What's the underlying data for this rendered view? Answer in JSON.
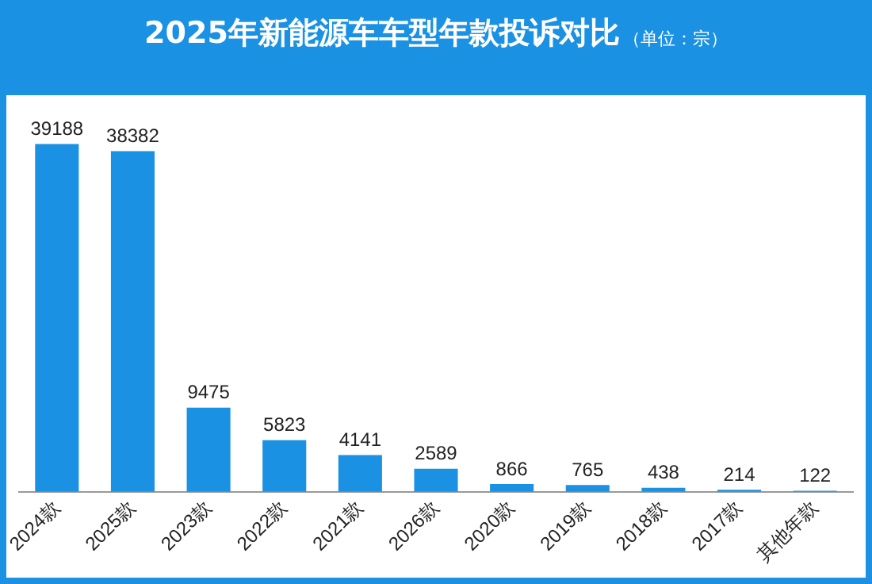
{
  "chart_data": {
    "type": "bar",
    "title": "2025年新能源车车型年款投诉对比",
    "subtitle": "（单位：宗）",
    "categories": [
      "2024款",
      "2025款",
      "2023款",
      "2022款",
      "2021款",
      "2026款",
      "2020款",
      "2019款",
      "2018款",
      "2017款",
      "其他年款"
    ],
    "values": [
      39188,
      38382,
      9475,
      5823,
      4141,
      2589,
      866,
      765,
      438,
      214,
      122
    ],
    "color": "#1a91e3",
    "data_labels": true,
    "grid": false,
    "legend": false,
    "tick_labels": "x"
  }
}
